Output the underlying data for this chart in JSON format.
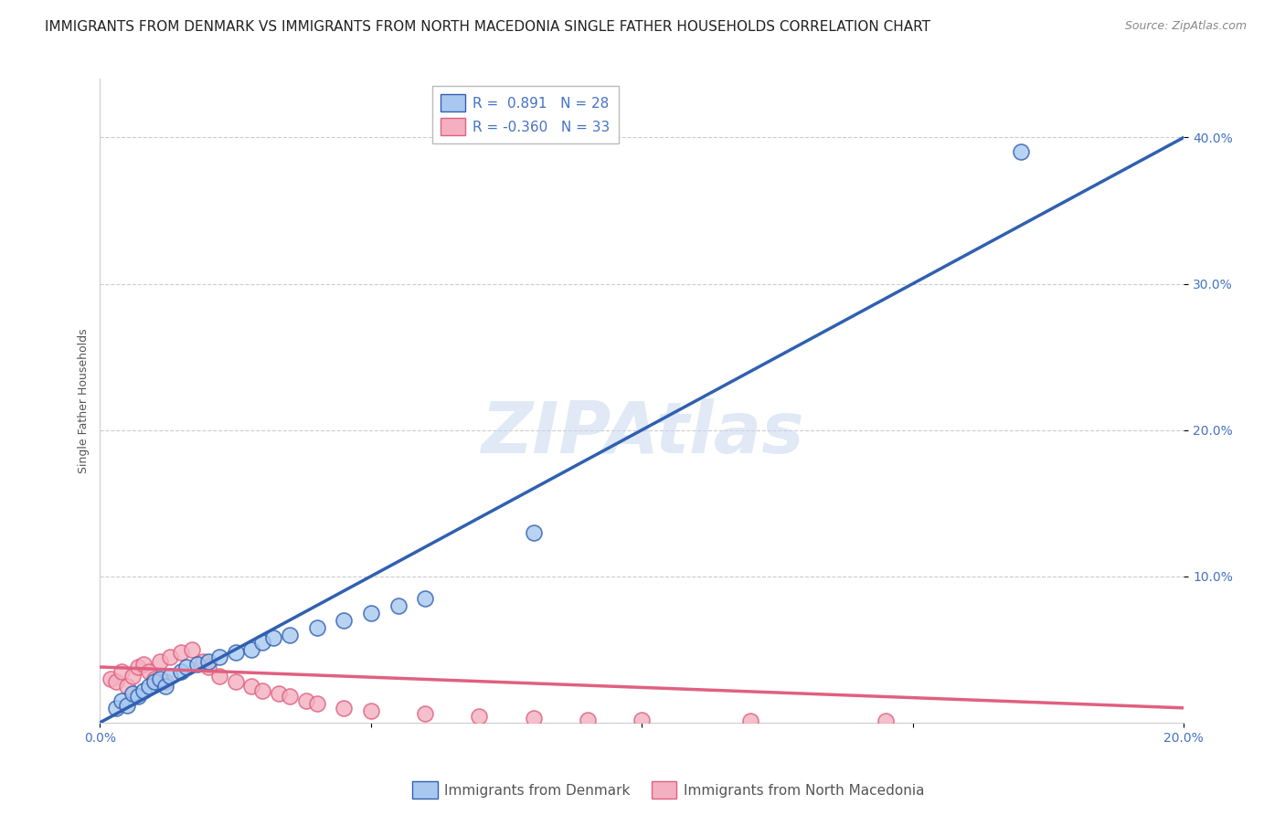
{
  "title": "IMMIGRANTS FROM DENMARK VS IMMIGRANTS FROM NORTH MACEDONIA SINGLE FATHER HOUSEHOLDS CORRELATION CHART",
  "source": "Source: ZipAtlas.com",
  "ylabel": "Single Father Households",
  "watermark": "ZIPAtlas",
  "legend_denmark": "Immigrants from Denmark",
  "legend_macedonia": "Immigrants from North Macedonia",
  "r_denmark": 0.891,
  "n_denmark": 28,
  "r_macedonia": -0.36,
  "n_macedonia": 33,
  "color_denmark": "#a8c8f0",
  "color_denmark_line": "#3060b0",
  "color_macedonia": "#f4b0c0",
  "color_macedonia_line": "#e06080",
  "xlim": [
    0.0,
    0.2
  ],
  "ylim": [
    0.0,
    0.44
  ],
  "ytick_positions": [
    0.1,
    0.2,
    0.3,
    0.4
  ],
  "ytick_labels": [
    "10.0%",
    "20.0%",
    "30.0%",
    "40.0%"
  ],
  "xtick_show": [
    0.0,
    0.2
  ],
  "xtick_labels_show": [
    "0.0%",
    "20.0%"
  ],
  "xtick_minor": [
    0.05,
    0.1,
    0.15
  ],
  "denmark_x": [
    0.003,
    0.004,
    0.005,
    0.006,
    0.007,
    0.008,
    0.009,
    0.01,
    0.011,
    0.012,
    0.013,
    0.015,
    0.016,
    0.018,
    0.02,
    0.022,
    0.025,
    0.028,
    0.03,
    0.032,
    0.035,
    0.04,
    0.045,
    0.05,
    0.055,
    0.06,
    0.08,
    0.17
  ],
  "denmark_y": [
    0.01,
    0.015,
    0.012,
    0.02,
    0.018,
    0.022,
    0.025,
    0.028,
    0.03,
    0.025,
    0.032,
    0.035,
    0.038,
    0.04,
    0.042,
    0.045,
    0.048,
    0.05,
    0.055,
    0.058,
    0.06,
    0.065,
    0.07,
    0.075,
    0.08,
    0.085,
    0.13,
    0.39
  ],
  "macedonia_x": [
    0.002,
    0.003,
    0.004,
    0.005,
    0.006,
    0.007,
    0.008,
    0.009,
    0.01,
    0.011,
    0.012,
    0.013,
    0.015,
    0.017,
    0.019,
    0.02,
    0.022,
    0.025,
    0.028,
    0.03,
    0.033,
    0.035,
    0.038,
    0.04,
    0.045,
    0.05,
    0.06,
    0.07,
    0.08,
    0.09,
    0.1,
    0.12,
    0.145
  ],
  "macedonia_y": [
    0.03,
    0.028,
    0.035,
    0.025,
    0.032,
    0.038,
    0.04,
    0.035,
    0.03,
    0.042,
    0.028,
    0.045,
    0.048,
    0.05,
    0.042,
    0.038,
    0.032,
    0.028,
    0.025,
    0.022,
    0.02,
    0.018,
    0.015,
    0.013,
    0.01,
    0.008,
    0.006,
    0.004,
    0.003,
    0.002,
    0.002,
    0.001,
    0.001
  ],
  "background_color": "#ffffff",
  "grid_color": "#cccccc",
  "title_fontsize": 11,
  "axis_label_fontsize": 9,
  "tick_fontsize": 10,
  "tick_color": "#4472c4"
}
